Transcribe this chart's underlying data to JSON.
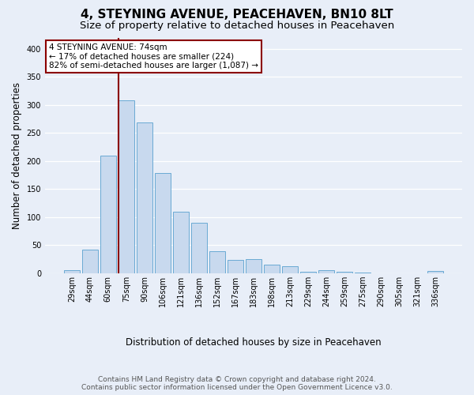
{
  "title": "4, STEYNING AVENUE, PEACEHAVEN, BN10 8LT",
  "subtitle": "Size of property relative to detached houses in Peacehaven",
  "xlabel": "Distribution of detached houses by size in Peacehaven",
  "ylabel": "Number of detached properties",
  "footer_line1": "Contains HM Land Registry data © Crown copyright and database right 2024.",
  "footer_line2": "Contains public sector information licensed under the Open Government Licence v3.0.",
  "categories": [
    "29sqm",
    "44sqm",
    "60sqm",
    "75sqm",
    "90sqm",
    "106sqm",
    "121sqm",
    "136sqm",
    "152sqm",
    "167sqm",
    "183sqm",
    "198sqm",
    "213sqm",
    "229sqm",
    "244sqm",
    "259sqm",
    "275sqm",
    "290sqm",
    "305sqm",
    "321sqm",
    "336sqm"
  ],
  "values": [
    5,
    42,
    209,
    308,
    269,
    179,
    109,
    90,
    39,
    23,
    25,
    15,
    12,
    3,
    5,
    3,
    1,
    0,
    0,
    0,
    4
  ],
  "bar_color": "#c8d9ee",
  "bar_edge_color": "#6aaad4",
  "vline_color": "#8b0000",
  "annotation_text": "4 STEYNING AVENUE: 74sqm\n← 17% of detached houses are smaller (224)\n82% of semi-detached houses are larger (1,087) →",
  "annotation_box_color": "#ffffff",
  "annotation_box_edge_color": "#8b0000",
  "ylim": [
    0,
    420
  ],
  "yticks": [
    0,
    50,
    100,
    150,
    200,
    250,
    300,
    350,
    400
  ],
  "bg_color": "#e8eef8",
  "plot_bg_color": "#e8eef8",
  "grid_color": "#ffffff",
  "title_fontsize": 11,
  "subtitle_fontsize": 9.5,
  "tick_fontsize": 7,
  "ylabel_fontsize": 8.5,
  "xlabel_fontsize": 8.5,
  "footer_fontsize": 6.5
}
